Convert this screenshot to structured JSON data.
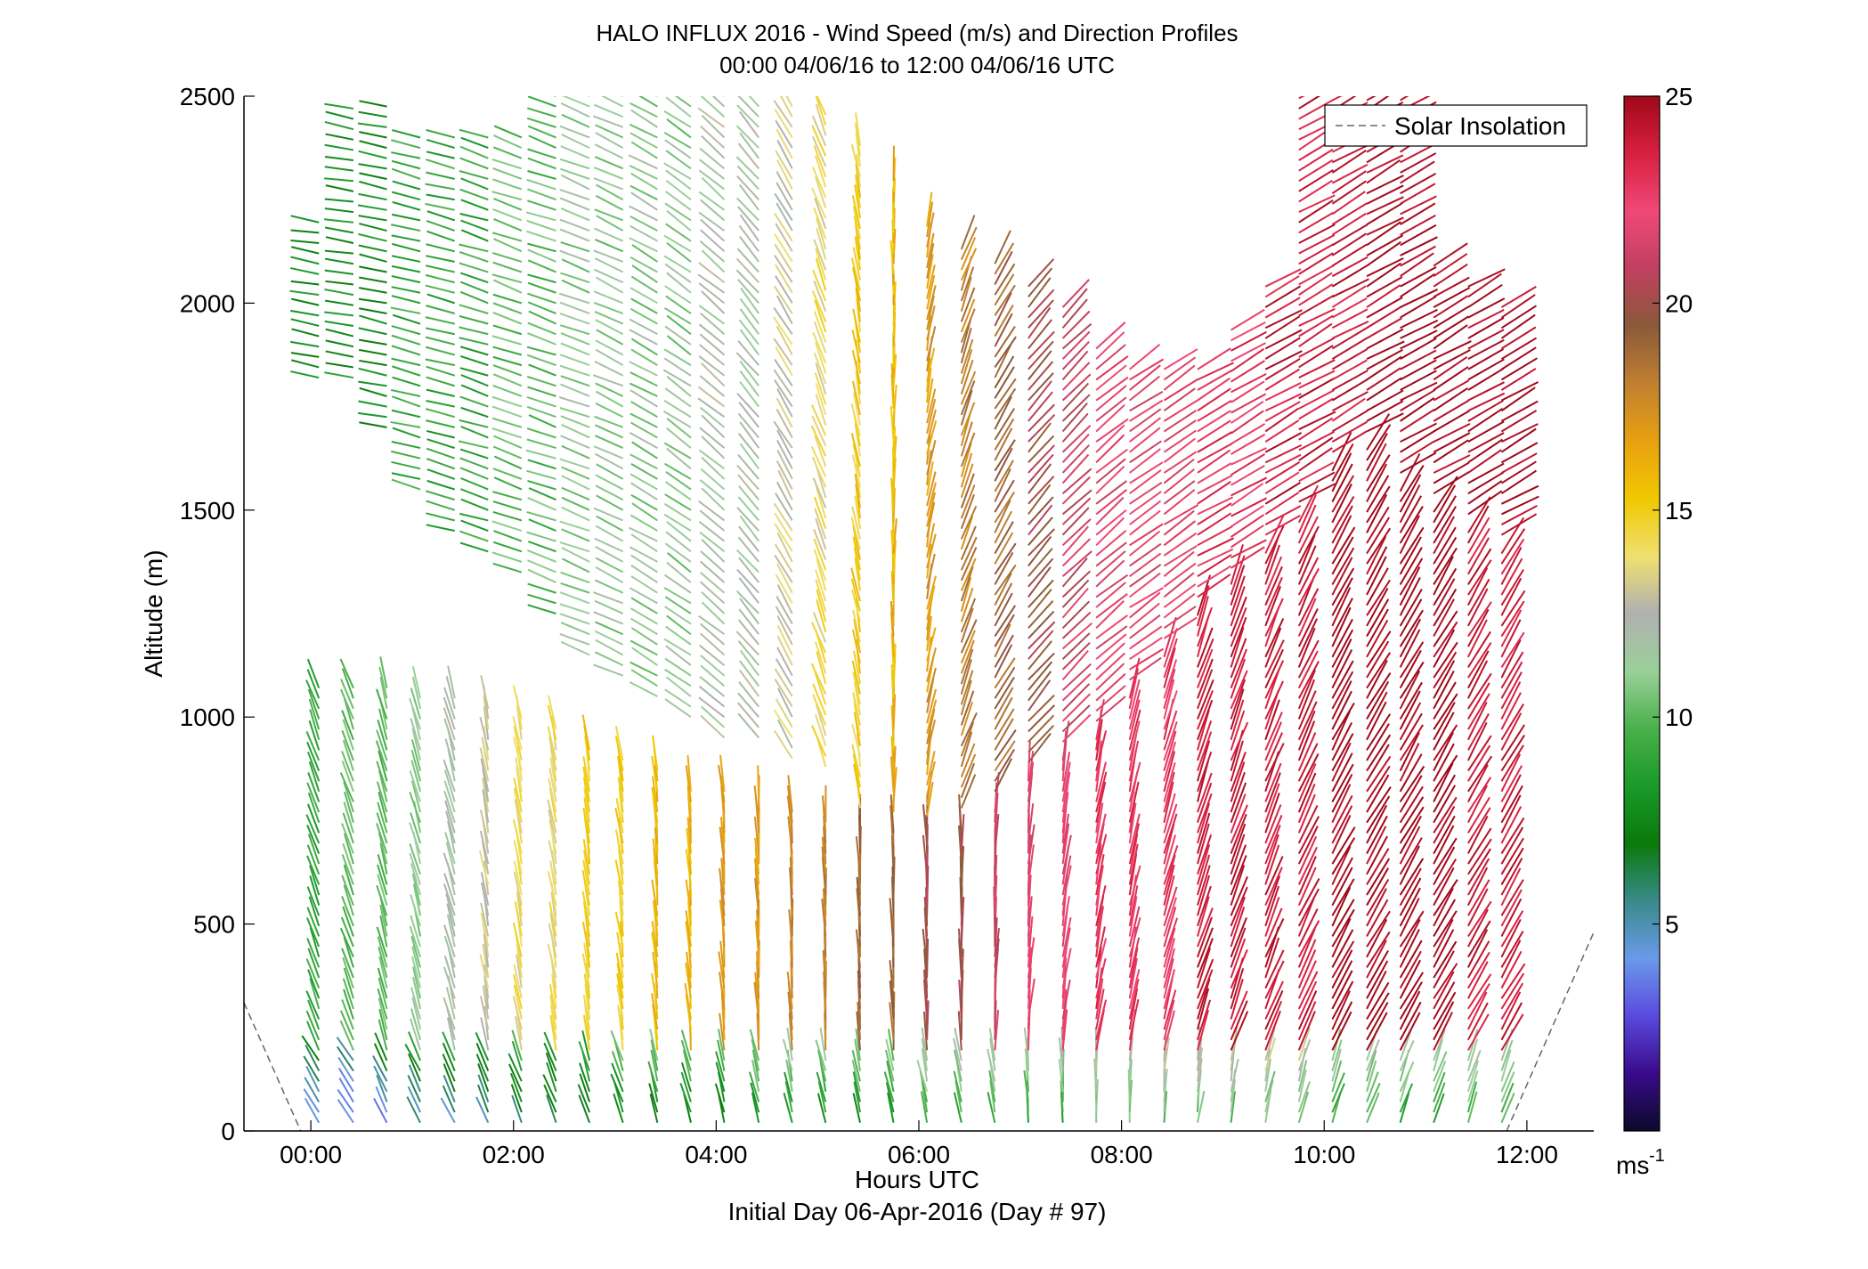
{
  "chart_data": {
    "type": "scatter",
    "subtype": "wind-barb-profile",
    "title": "HALO INFLUX 2016 - Wind Speed (m/s) and Direction Profiles",
    "subtitle": "00:00 04/06/16 to 12:00 04/06/16  UTC",
    "xlabel": "Hours UTC",
    "xlabel2": "Initial Day 06-Apr-2016 (Day # 97)",
    "ylabel": "Altitude (m)",
    "xlim": [
      -0.66,
      12.66
    ],
    "ylim": [
      0,
      2500
    ],
    "x_ticks": [
      0,
      2,
      4,
      6,
      8,
      10,
      12
    ],
    "x_tick_labels": [
      "00:00",
      "02:00",
      "04:00",
      "06:00",
      "08:00",
      "10:00",
      "12:00"
    ],
    "y_ticks": [
      0,
      500,
      1000,
      1500,
      2000,
      2500
    ],
    "y_tick_labels": [
      "0",
      "500",
      "1000",
      "1500",
      "2000",
      "2500"
    ],
    "grid": false,
    "legend": {
      "position": "top-right",
      "entries": [
        "Solar Insolation"
      ]
    },
    "colorbar": {
      "label": "ms",
      "label_exponent": "-1",
      "range": [
        0,
        25
      ],
      "ticks": [
        5,
        10,
        15,
        20,
        25
      ],
      "tick_labels": [
        "5",
        "10",
        "15",
        "20",
        "25"
      ],
      "colors": [
        "#0a0a2a",
        "#3a0a8a",
        "#5a4adf",
        "#6a9ae8",
        "#3a8a8a",
        "#0a7a0a",
        "#1a9a2a",
        "#4ab04a",
        "#9ad09a",
        "#b0b0b0",
        "#f0e070",
        "#f0c800",
        "#e8a010",
        "#c08030",
        "#8a5a3a",
        "#c04060",
        "#f04878",
        "#d82040",
        "#a00818"
      ]
    },
    "solar_insolation": {
      "x": [
        -0.66,
        -0.1,
        11.8,
        12.66
      ],
      "y": [
        310,
        0,
        0,
        480
      ]
    },
    "wind_profiles": {
      "times": [
        0.08,
        0.42,
        0.75,
        1.08,
        1.42,
        1.75,
        2.08,
        2.42,
        2.75,
        3.08,
        3.42,
        3.75,
        4.08,
        4.42,
        4.75,
        5.08,
        5.42,
        5.75,
        6.08,
        6.42,
        6.75,
        7.08,
        7.42,
        7.75,
        8.08,
        8.42,
        8.75,
        9.08,
        9.42,
        9.75,
        10.08,
        10.42,
        10.75,
        11.08,
        11.42,
        11.75
      ],
      "low_layer_top": [
        1080,
        1080,
        1070,
        1060,
        1050,
        1040,
        1000,
        980,
        940,
        910,
        880,
        840,
        830,
        800,
        780,
        760,
        740,
        730,
        720,
        740,
        780,
        850,
        900,
        950,
        1050,
        1150,
        1250,
        1320,
        1400,
        1480,
        1600,
        1650,
        1550,
        1500,
        1450,
        1400
      ],
      "low_layer_speed": [
        9,
        10,
        10,
        11,
        12,
        13,
        14,
        14,
        15,
        15,
        16,
        16,
        17,
        17,
        18,
        18,
        19,
        19,
        20,
        20,
        21,
        22,
        22,
        23,
        23,
        23,
        24,
        24,
        24,
        24,
        25,
        25,
        25,
        25,
        24,
        24
      ],
      "low_layer_direction_deg": [
        340,
        340,
        345,
        345,
        345,
        350,
        350,
        350,
        352,
        352,
        355,
        355,
        355,
        357,
        357,
        357,
        358,
        358,
        358,
        0,
        2,
        5,
        8,
        10,
        12,
        15,
        18,
        20,
        22,
        25,
        28,
        30,
        30,
        30,
        30,
        30
      ],
      "upper_layer_base": [
        1820,
        1820,
        1700,
        1550,
        1450,
        1400,
        1350,
        1250,
        1150,
        1100,
        1050,
        1000,
        950,
        950,
        900,
        880,
        null,
        null,
        null,
        null,
        null,
        null,
        null,
        null,
        null,
        null,
        null,
        null,
        null,
        null,
        null,
        null,
        null,
        null,
        null,
        null
      ],
      "upper_layer_top": [
        2200,
        2480,
        2480,
        2420,
        2400,
        2400,
        2420,
        2500,
        2500,
        2500,
        2500,
        2500,
        2500,
        2480,
        2480,
        2460,
        2400,
        2300,
        2200,
        2150,
        2100,
        2050,
        2000,
        1900,
        1850,
        1850,
        1850,
        1950,
        2050,
        2500,
        2500,
        2500,
        2500,
        2100,
        2050,
        2000
      ],
      "upper_layer_speed": [
        8,
        8,
        8,
        9,
        9,
        9,
        10,
        10,
        11,
        11,
        11,
        11,
        12,
        12,
        13,
        14,
        15,
        16,
        17,
        18,
        19,
        20,
        21,
        22,
        22,
        22,
        23,
        23,
        24,
        24,
        24,
        25,
        25,
        25,
        25,
        25
      ],
      "upper_layer_direction_deg": [
        280,
        280,
        282,
        285,
        285,
        288,
        290,
        290,
        292,
        295,
        300,
        305,
        310,
        320,
        330,
        340,
        350,
        0,
        10,
        20,
        30,
        40,
        45,
        50,
        55,
        55,
        60,
        60,
        60,
        60,
        60,
        60,
        60,
        60,
        60,
        60
      ],
      "surface_speed": [
        4,
        3,
        4,
        5,
        5,
        5,
        6,
        6,
        6,
        7,
        7,
        7,
        7,
        8,
        8,
        8,
        8,
        8,
        9,
        9,
        9,
        9,
        9,
        10,
        10,
        10,
        10,
        10,
        10,
        10,
        9,
        9,
        9,
        9,
        9,
        9
      ]
    }
  }
}
